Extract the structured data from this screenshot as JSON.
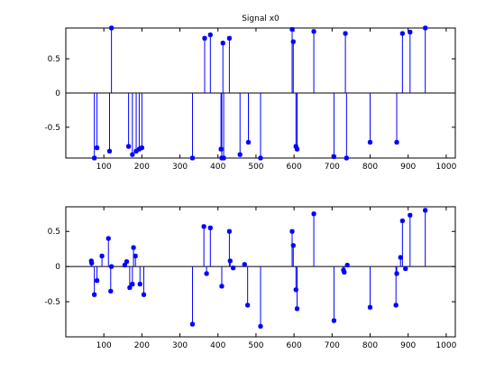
{
  "chart_data": [
    {
      "type": "stem",
      "title": "Signal x0",
      "xlim": [
        0,
        1024
      ],
      "ylim": [
        -0.95,
        0.95
      ],
      "xticks": [
        100,
        200,
        300,
        400,
        500,
        600,
        700,
        800,
        900,
        1000
      ],
      "yticks": [
        -0.5,
        0,
        0.5
      ],
      "ytick_labels": [
        "-0.5",
        "0",
        "0.5"
      ],
      "grid": false,
      "color": "#0000ff",
      "x": [
        75,
        82,
        115,
        120,
        165,
        175,
        185,
        193,
        200,
        333,
        365,
        380,
        408,
        410,
        413,
        415,
        430,
        458,
        480,
        512,
        595,
        598,
        605,
        608,
        652,
        705,
        735,
        738,
        800,
        870,
        885,
        905,
        945
      ],
      "y": [
        -0.95,
        -0.8,
        -0.85,
        0.95,
        -0.78,
        -0.9,
        -0.85,
        -0.82,
        -0.8,
        -0.95,
        0.8,
        0.85,
        -0.82,
        -0.95,
        0.73,
        -0.95,
        0.8,
        -0.9,
        -0.72,
        -0.95,
        0.93,
        0.75,
        -0.78,
        -0.82,
        0.9,
        -0.93,
        0.87,
        -0.95,
        -0.72,
        -0.72,
        0.87,
        0.89,
        0.95
      ]
    },
    {
      "type": "stem",
      "title": "",
      "xlim": [
        0,
        1024
      ],
      "ylim": [
        -1.0,
        0.85
      ],
      "xticks": [
        100,
        200,
        300,
        400,
        500,
        600,
        700,
        800,
        900,
        1000
      ],
      "yticks": [
        -0.5,
        0,
        0.5
      ],
      "ytick_labels": [
        "-0.5",
        "0",
        "0.5"
      ],
      "grid": false,
      "color": "#0000ff",
      "x": [
        67,
        68,
        75,
        82,
        95,
        112,
        118,
        120,
        155,
        160,
        168,
        175,
        178,
        183,
        195,
        205,
        333,
        363,
        370,
        380,
        410,
        430,
        432,
        440,
        470,
        478,
        512,
        595,
        598,
        605,
        608,
        652,
        705,
        730,
        732,
        740,
        800,
        868,
        870,
        880,
        885,
        893,
        905,
        945
      ],
      "y": [
        0.08,
        0.05,
        -0.4,
        -0.2,
        0.15,
        0.4,
        -0.35,
        0.0,
        0.02,
        0.07,
        -0.3,
        -0.25,
        0.27,
        0.15,
        -0.25,
        -0.4,
        -0.82,
        0.57,
        -0.1,
        0.55,
        -0.28,
        0.5,
        0.08,
        -0.02,
        0.03,
        -0.55,
        -0.85,
        0.5,
        0.3,
        -0.33,
        -0.6,
        0.75,
        -0.77,
        -0.05,
        -0.08,
        0.02,
        -0.58,
        -0.55,
        -0.1,
        0.13,
        0.65,
        -0.03,
        0.73,
        0.8
      ]
    }
  ]
}
